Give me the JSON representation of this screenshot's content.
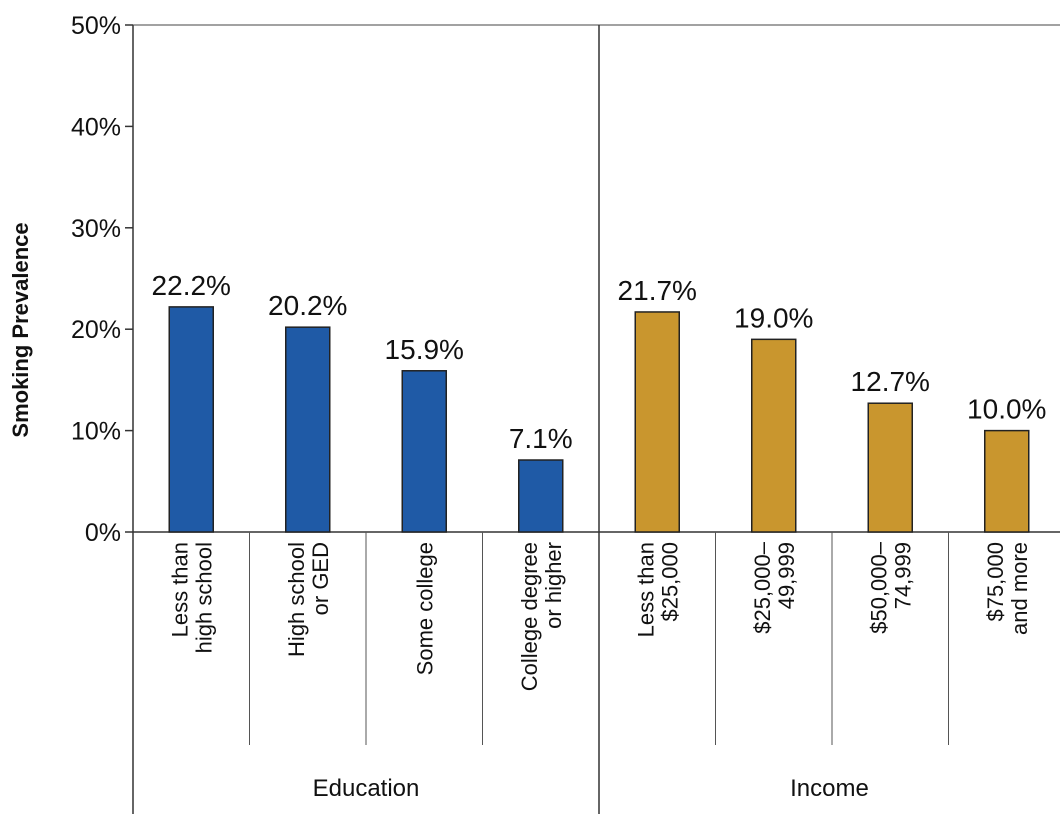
{
  "chart_data": {
    "type": "bar",
    "ylabel": "Smoking Prevalence",
    "xlabel": "",
    "ylim": [
      0,
      50
    ],
    "yticks": [
      "0%",
      "10%",
      "20%",
      "30%",
      "40%",
      "50%"
    ],
    "grid": false,
    "groups": [
      {
        "name": "Education",
        "color": "#1f5aa6",
        "categories": [
          [
            "Less than",
            "high school"
          ],
          [
            "High school",
            "or GED"
          ],
          [
            "Some college"
          ],
          [
            "College degree",
            "or higher"
          ]
        ],
        "values": [
          22.2,
          20.2,
          15.9,
          7.1
        ],
        "labels": [
          "22.2%",
          "20.2%",
          "15.9%",
          "7.1%"
        ]
      },
      {
        "name": "Income",
        "color": "#c9962e",
        "categories": [
          [
            "Less than",
            "$25,000"
          ],
          [
            "$25,000–",
            "49,999"
          ],
          [
            "$50,000–",
            "74,999"
          ],
          [
            "$75,000",
            "and more"
          ]
        ],
        "values": [
          21.7,
          19.0,
          12.7,
          10.0
        ],
        "labels": [
          "21.7%",
          "19.0%",
          "12.7%",
          "10.0%"
        ]
      }
    ]
  }
}
